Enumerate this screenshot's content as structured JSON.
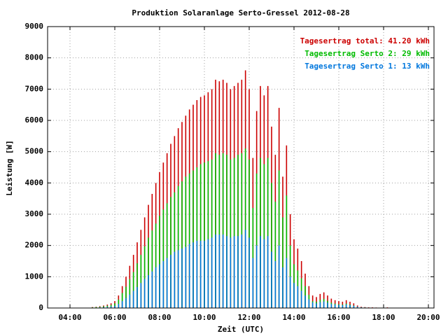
{
  "chart_data": {
    "type": "bar",
    "title": "Produktion Solaranlage Serto-Gressel 2012-08-28",
    "xlabel": "Zeit (UTC)",
    "ylabel": "Leistung [W]",
    "x": [
      300,
      310,
      320,
      330,
      340,
      350,
      360,
      370,
      380,
      390,
      400,
      410,
      420,
      430,
      440,
      450,
      460,
      470,
      480,
      490,
      500,
      510,
      520,
      530,
      540,
      550,
      560,
      570,
      580,
      590,
      600,
      610,
      620,
      630,
      640,
      650,
      660,
      670,
      680,
      690,
      700,
      710,
      720,
      730,
      740,
      750,
      760,
      770,
      780,
      790,
      800,
      810,
      820,
      830,
      840,
      850,
      860,
      870,
      880,
      890,
      900,
      910,
      920,
      930,
      940,
      950,
      960,
      970,
      980,
      990,
      1000,
      1010,
      1020,
      1030,
      1040,
      1050,
      1060,
      1070,
      1080,
      1090,
      1100
    ],
    "series": [
      {
        "name": "Tagesertrag total: 41.20 kWh",
        "color": "#cc0000",
        "values": [
          30,
          40,
          60,
          80,
          110,
          150,
          220,
          400,
          700,
          1000,
          1350,
          1700,
          2100,
          2500,
          2900,
          3300,
          3650,
          4000,
          4350,
          4650,
          4950,
          5250,
          5500,
          5750,
          5950,
          6150,
          6350,
          6500,
          6650,
          6750,
          6800,
          6900,
          7000,
          7300,
          7250,
          7300,
          7200,
          7000,
          7100,
          7200,
          7300,
          7600,
          7000,
          4800,
          6300,
          7100,
          6800,
          7100,
          5800,
          4900,
          6400,
          4200,
          5200,
          3000,
          2200,
          1900,
          1500,
          1100,
          700,
          400,
          350,
          450,
          500,
          400,
          300,
          250,
          220,
          200,
          250,
          200,
          150,
          80,
          40,
          30,
          20,
          20,
          15,
          10,
          10,
          20,
          10
        ]
      },
      {
        "name": "Tagesertrag Serto 2: 29 kWh",
        "color": "#00bb00",
        "values": [
          20,
          30,
          40,
          55,
          75,
          100,
          150,
          270,
          480,
          680,
          920,
          1150,
          1430,
          1700,
          1970,
          2250,
          2480,
          2700,
          2950,
          3150,
          3350,
          3550,
          3700,
          3900,
          4050,
          4200,
          4300,
          4400,
          4500,
          4600,
          4650,
          4700,
          4750,
          4950,
          4900,
          4950,
          4900,
          4750,
          4800,
          4900,
          4950,
          5100,
          4750,
          3200,
          4300,
          4800,
          4600,
          4800,
          4000,
          3400,
          4400,
          2900,
          3600,
          2000,
          1400,
          1200,
          950,
          700,
          420,
          220,
          200,
          260,
          290,
          230,
          170,
          140,
          120,
          110,
          140,
          110,
          80,
          40,
          20,
          15,
          10,
          10,
          8,
          5,
          5,
          10,
          5
        ]
      },
      {
        "name": "Tagesertrag Serto 1: 13 kWh",
        "color": "#0077dd",
        "values": [
          10,
          10,
          20,
          25,
          35,
          50,
          70,
          130,
          220,
          320,
          430,
          550,
          670,
          800,
          930,
          1050,
          1170,
          1300,
          1400,
          1500,
          1600,
          1700,
          1800,
          1850,
          1900,
          1950,
          2050,
          2100,
          2150,
          2150,
          2150,
          2200,
          2250,
          2350,
          2350,
          2350,
          2300,
          2250,
          2300,
          2300,
          2350,
          2500,
          2250,
          1600,
          2000,
          2300,
          2200,
          2300,
          1800,
          1500,
          2000,
          1300,
          1600,
          1000,
          800,
          700,
          550,
          400,
          280,
          180,
          150,
          190,
          210,
          170,
          130,
          110,
          100,
          90,
          110,
          90,
          70,
          40,
          20,
          15,
          10,
          10,
          7,
          5,
          5,
          10,
          5
        ]
      }
    ],
    "xlim": [
      180,
      1215
    ],
    "xticks": [
      {
        "value": 240,
        "label": "04:00"
      },
      {
        "value": 360,
        "label": "06:00"
      },
      {
        "value": 480,
        "label": "08:00"
      },
      {
        "value": 600,
        "label": "10:00"
      },
      {
        "value": 720,
        "label": "12:00"
      },
      {
        "value": 840,
        "label": "14:00"
      },
      {
        "value": 960,
        "label": "16:00"
      },
      {
        "value": 1080,
        "label": "18:00"
      },
      {
        "value": 1200,
        "label": "20:00"
      }
    ],
    "ylim": [
      0,
      9000
    ],
    "yticks": [
      0,
      1000,
      2000,
      3000,
      4000,
      5000,
      6000,
      7000,
      8000,
      9000
    ],
    "grid": true,
    "legend": "upper right"
  }
}
